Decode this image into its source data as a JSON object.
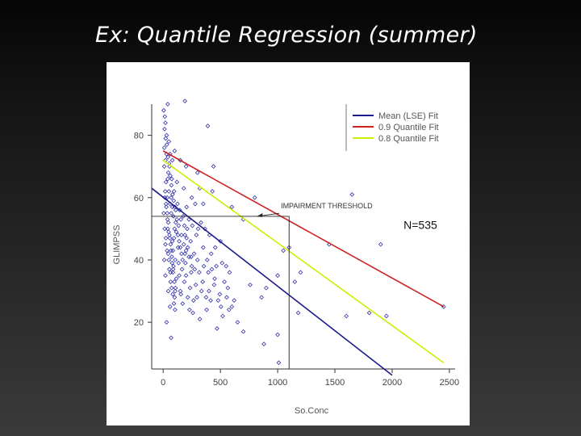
{
  "slide": {
    "title": "Ex:  Quantile Regression (summer)"
  },
  "chart_data": {
    "type": "scatter",
    "title": "",
    "xlabel": "So.Conc",
    "ylabel": "GLIMPSS",
    "xlim": [
      -100,
      2550
    ],
    "ylim": [
      5,
      90
    ],
    "x_ticks": [
      0,
      500,
      1000,
      1500,
      2000,
      2500
    ],
    "y_ticks": [
      20,
      40,
      60,
      80
    ],
    "x_tick_labels": [
      "0",
      "500",
      "1000",
      "1500",
      "2000",
      "2500"
    ],
    "y_tick_labels": [
      "20",
      "40",
      "60",
      "80"
    ],
    "grid": false,
    "legend_position": "top-right",
    "series": [
      {
        "name": "Mean (LSE) Fit",
        "kind": "line",
        "color": "#1a1a8c",
        "x": [
          -100,
          2000
        ],
        "y": [
          63,
          3
        ]
      },
      {
        "name": "0.9 Quantile Fit",
        "kind": "line",
        "color": "#cc2222",
        "x": [
          0,
          2450
        ],
        "y": [
          75,
          25
        ]
      },
      {
        "name": "0.8 Quantile Fit",
        "kind": "line",
        "color": "#ccee00",
        "x": [
          0,
          2450
        ],
        "y": [
          72,
          7
        ]
      }
    ],
    "threshold": {
      "x": 1100,
      "y": 54,
      "label": "IMPAIRMENT THRESHOLD",
      "label_x": 1000,
      "label_y": 56
    },
    "annotation": {
      "text": "N=535",
      "x": 2100,
      "y": 50
    },
    "points_count": 535,
    "point_color": "#3333aa",
    "points": [
      [
        5,
        88
      ],
      [
        15,
        86
      ],
      [
        40,
        90
      ],
      [
        190,
        91
      ],
      [
        390,
        83
      ],
      [
        20,
        84
      ],
      [
        30,
        80
      ],
      [
        50,
        78
      ],
      [
        10,
        76
      ],
      [
        60,
        74
      ],
      [
        80,
        72
      ],
      [
        100,
        75
      ],
      [
        150,
        72
      ],
      [
        200,
        70
      ],
      [
        300,
        68
      ],
      [
        440,
        70
      ],
      [
        320,
        63
      ],
      [
        430,
        62
      ],
      [
        800,
        60
      ],
      [
        1650,
        61
      ],
      [
        120,
        65
      ],
      [
        180,
        63
      ],
      [
        250,
        60
      ],
      [
        280,
        58
      ],
      [
        350,
        58
      ],
      [
        600,
        57
      ],
      [
        700,
        53
      ],
      [
        1100,
        44
      ],
      [
        1450,
        45
      ],
      [
        1900,
        45
      ],
      [
        1050,
        43
      ],
      [
        1000,
        35
      ],
      [
        1150,
        33
      ],
      [
        1200,
        36
      ],
      [
        900,
        31
      ],
      [
        760,
        32
      ],
      [
        1600,
        22
      ],
      [
        1800,
        23
      ],
      [
        1950,
        22
      ],
      [
        2450,
        25
      ],
      [
        1000,
        16
      ],
      [
        1180,
        23
      ],
      [
        860,
        28
      ],
      [
        880,
        13
      ],
      [
        1010,
        7
      ],
      [
        650,
        20
      ],
      [
        520,
        22
      ],
      [
        700,
        17
      ],
      [
        600,
        25
      ],
      [
        470,
        18
      ],
      [
        320,
        21
      ],
      [
        70,
        15
      ],
      [
        30,
        20
      ],
      [
        60,
        25
      ],
      [
        100,
        28
      ],
      [
        150,
        30
      ],
      [
        200,
        35
      ],
      [
        250,
        38
      ],
      [
        300,
        40
      ],
      [
        450,
        34
      ],
      [
        400,
        30
      ],
      [
        550,
        38
      ],
      [
        350,
        44
      ],
      [
        420,
        42
      ],
      [
        500,
        46
      ],
      [
        580,
        36
      ],
      [
        620,
        27
      ],
      [
        480,
        27
      ],
      [
        380,
        24
      ],
      [
        260,
        23
      ],
      [
        230,
        24
      ],
      [
        170,
        26
      ],
      [
        140,
        35
      ],
      [
        90,
        38
      ],
      [
        50,
        40
      ],
      [
        20,
        45
      ],
      [
        40,
        50
      ],
      [
        70,
        55
      ],
      [
        110,
        52
      ],
      [
        160,
        48
      ],
      [
        210,
        50
      ],
      [
        240,
        46
      ],
      [
        290,
        48
      ],
      [
        330,
        52
      ],
      [
        270,
        42
      ],
      [
        190,
        42
      ],
      [
        130,
        44
      ],
      [
        80,
        46
      ],
      [
        35,
        60
      ],
      [
        25,
        65
      ],
      [
        45,
        68
      ],
      [
        55,
        70
      ],
      [
        75,
        66
      ],
      [
        95,
        62
      ],
      [
        125,
        58
      ],
      [
        145,
        56
      ],
      [
        175,
        54
      ],
      [
        205,
        57
      ],
      [
        225,
        53
      ],
      [
        255,
        51
      ],
      [
        305,
        50
      ],
      [
        365,
        50
      ],
      [
        405,
        48
      ],
      [
        455,
        44
      ],
      [
        515,
        39
      ],
      [
        535,
        33
      ],
      [
        565,
        31
      ],
      [
        465,
        38
      ],
      [
        395,
        36
      ],
      [
        345,
        33
      ],
      [
        285,
        32
      ],
      [
        235,
        31
      ],
      [
        185,
        33
      ],
      [
        115,
        34
      ],
      [
        65,
        33
      ],
      [
        45,
        30
      ],
      [
        20,
        35
      ],
      [
        10,
        40
      ],
      [
        5,
        55
      ],
      [
        15,
        60
      ],
      [
        25,
        58
      ],
      [
        35,
        55
      ],
      [
        45,
        52
      ],
      [
        55,
        48
      ],
      [
        65,
        45
      ],
      [
        85,
        43
      ],
      [
        105,
        40
      ],
      [
        135,
        39
      ],
      [
        165,
        37
      ],
      [
        195,
        39
      ],
      [
        215,
        44
      ],
      [
        245,
        41
      ],
      [
        275,
        37
      ],
      [
        315,
        36
      ],
      [
        355,
        38
      ],
      [
        385,
        40
      ],
      [
        425,
        37
      ],
      [
        445,
        32
      ],
      [
        495,
        29
      ],
      [
        555,
        28
      ],
      [
        575,
        24
      ],
      [
        505,
        25
      ],
      [
        415,
        27
      ],
      [
        375,
        28
      ],
      [
        335,
        30
      ],
      [
        295,
        28
      ],
      [
        265,
        27
      ],
      [
        215,
        28
      ],
      [
        155,
        29
      ],
      [
        105,
        30
      ],
      [
        85,
        36
      ],
      [
        75,
        41
      ],
      [
        95,
        47
      ],
      [
        115,
        49
      ],
      [
        135,
        51
      ],
      [
        155,
        53
      ],
      [
        185,
        51
      ],
      [
        205,
        47
      ],
      [
        225,
        41
      ],
      [
        245,
        36
      ],
      [
        10,
        70
      ],
      [
        20,
        72
      ],
      [
        30,
        74
      ],
      [
        40,
        66
      ],
      [
        50,
        62
      ],
      [
        60,
        58
      ],
      [
        70,
        60
      ],
      [
        80,
        57
      ],
      [
        90,
        54
      ],
      [
        100,
        50
      ],
      [
        110,
        56
      ],
      [
        120,
        53
      ],
      [
        130,
        48
      ],
      [
        140,
        46
      ],
      [
        150,
        44
      ],
      [
        160,
        42
      ],
      [
        170,
        40
      ],
      [
        180,
        45
      ],
      [
        190,
        48
      ],
      [
        200,
        43
      ],
      [
        12,
        82
      ],
      [
        22,
        79
      ],
      [
        32,
        77
      ],
      [
        42,
        73
      ],
      [
        52,
        71
      ],
      [
        62,
        67
      ],
      [
        72,
        64
      ],
      [
        82,
        61
      ],
      [
        92,
        59
      ],
      [
        102,
        57
      ],
      [
        18,
        62
      ],
      [
        28,
        57
      ],
      [
        38,
        53
      ],
      [
        48,
        49
      ],
      [
        58,
        47
      ],
      [
        68,
        43
      ],
      [
        78,
        39
      ],
      [
        88,
        37
      ],
      [
        98,
        33
      ],
      [
        108,
        31
      ],
      [
        14,
        50
      ],
      [
        24,
        47
      ],
      [
        34,
        43
      ],
      [
        44,
        42
      ],
      [
        54,
        37
      ],
      [
        64,
        36
      ],
      [
        74,
        31
      ],
      [
        84,
        29
      ],
      [
        94,
        26
      ],
      [
        104,
        24
      ]
    ]
  }
}
